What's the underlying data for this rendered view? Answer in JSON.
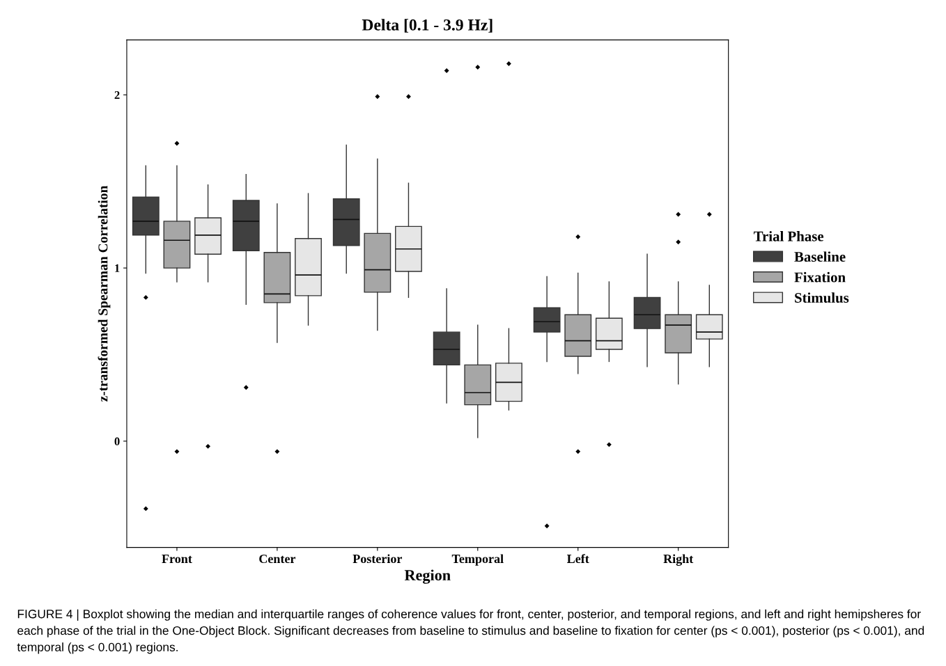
{
  "chart_data": {
    "type": "box",
    "title": "Delta [0.1 - 3.9 Hz]",
    "xlabel": "Region",
    "ylabel": "z-transformed Spearman Correlation",
    "legend_title": "Trial Phase",
    "legend": "right",
    "grid": false,
    "categories": [
      "Front",
      "Center",
      "Posterior",
      "Temporal",
      "Left",
      "Right"
    ],
    "ylim": [
      -0.614,
      2.317
    ],
    "yticks": [
      0,
      1,
      2
    ],
    "series": [
      {
        "name": "Baseline",
        "color": "#404040",
        "boxes": [
          {
            "low": 0.97,
            "q1": 1.19,
            "median": 1.27,
            "q3": 1.41,
            "high": 1.59,
            "outliers": [
              0.83,
              -0.39
            ]
          },
          {
            "low": 0.79,
            "q1": 1.1,
            "median": 1.27,
            "q3": 1.39,
            "high": 1.54,
            "outliers": [
              0.31
            ]
          },
          {
            "low": 0.97,
            "q1": 1.13,
            "median": 1.28,
            "q3": 1.4,
            "high": 1.71
          },
          {
            "low": 0.22,
            "q1": 0.44,
            "median": 0.53,
            "q3": 0.63,
            "high": 0.88,
            "outliers": [
              2.14
            ]
          },
          {
            "low": 0.46,
            "q1": 0.63,
            "median": 0.69,
            "q3": 0.77,
            "high": 0.95,
            "outliers": [
              -0.49
            ]
          },
          {
            "low": 0.43,
            "q1": 0.65,
            "median": 0.73,
            "q3": 0.83,
            "high": 1.08
          }
        ]
      },
      {
        "name": "Fixation",
        "color": "#a6a6a6",
        "boxes": [
          {
            "low": 0.92,
            "q1": 1.0,
            "median": 1.16,
            "q3": 1.27,
            "high": 1.59,
            "outliers": [
              1.72,
              -0.06
            ]
          },
          {
            "low": 0.57,
            "q1": 0.8,
            "median": 0.85,
            "q3": 1.09,
            "high": 1.37,
            "outliers": [
              -0.06
            ]
          },
          {
            "low": 0.64,
            "q1": 0.86,
            "median": 0.99,
            "q3": 1.2,
            "high": 1.63,
            "outliers": [
              1.99
            ]
          },
          {
            "low": 0.02,
            "q1": 0.21,
            "median": 0.28,
            "q3": 0.44,
            "high": 0.67,
            "outliers": [
              2.16
            ]
          },
          {
            "low": 0.39,
            "q1": 0.49,
            "median": 0.58,
            "q3": 0.73,
            "high": 0.97,
            "outliers": [
              1.18,
              -0.06
            ]
          },
          {
            "low": 0.33,
            "q1": 0.51,
            "median": 0.67,
            "q3": 0.73,
            "high": 0.92,
            "outliers": [
              1.31,
              1.15
            ]
          }
        ]
      },
      {
        "name": "Stimulus",
        "color": "#e6e6e6",
        "boxes": [
          {
            "low": 0.92,
            "q1": 1.08,
            "median": 1.19,
            "q3": 1.29,
            "high": 1.48,
            "outliers": [
              -0.03
            ]
          },
          {
            "low": 0.67,
            "q1": 0.84,
            "median": 0.96,
            "q3": 1.17,
            "high": 1.43
          },
          {
            "low": 0.83,
            "q1": 0.98,
            "median": 1.11,
            "q3": 1.24,
            "high": 1.49,
            "outliers": [
              1.99
            ]
          },
          {
            "low": 0.18,
            "q1": 0.23,
            "median": 0.34,
            "q3": 0.45,
            "high": 0.65,
            "outliers": [
              2.18
            ]
          },
          {
            "low": 0.46,
            "q1": 0.53,
            "median": 0.58,
            "q3": 0.71,
            "high": 0.92,
            "outliers": [
              -0.02
            ]
          },
          {
            "low": 0.43,
            "q1": 0.59,
            "median": 0.63,
            "q3": 0.73,
            "high": 0.9,
            "outliers": [
              1.31
            ]
          }
        ]
      }
    ],
    "annotations": [
      "FIGURE 4 | Boxplot showing the median and interquartile ranges of coherence values for front, center, posterior, and temporal regions, and left and right hemipsheres for each phase of the trial in the One-Object Block. Significant decreases from baseline to stimulus and baseline to fixation for center (ps < 0.001), posterior (ps < 0.001), and temporal (ps < 0.001) regions."
    ]
  }
}
